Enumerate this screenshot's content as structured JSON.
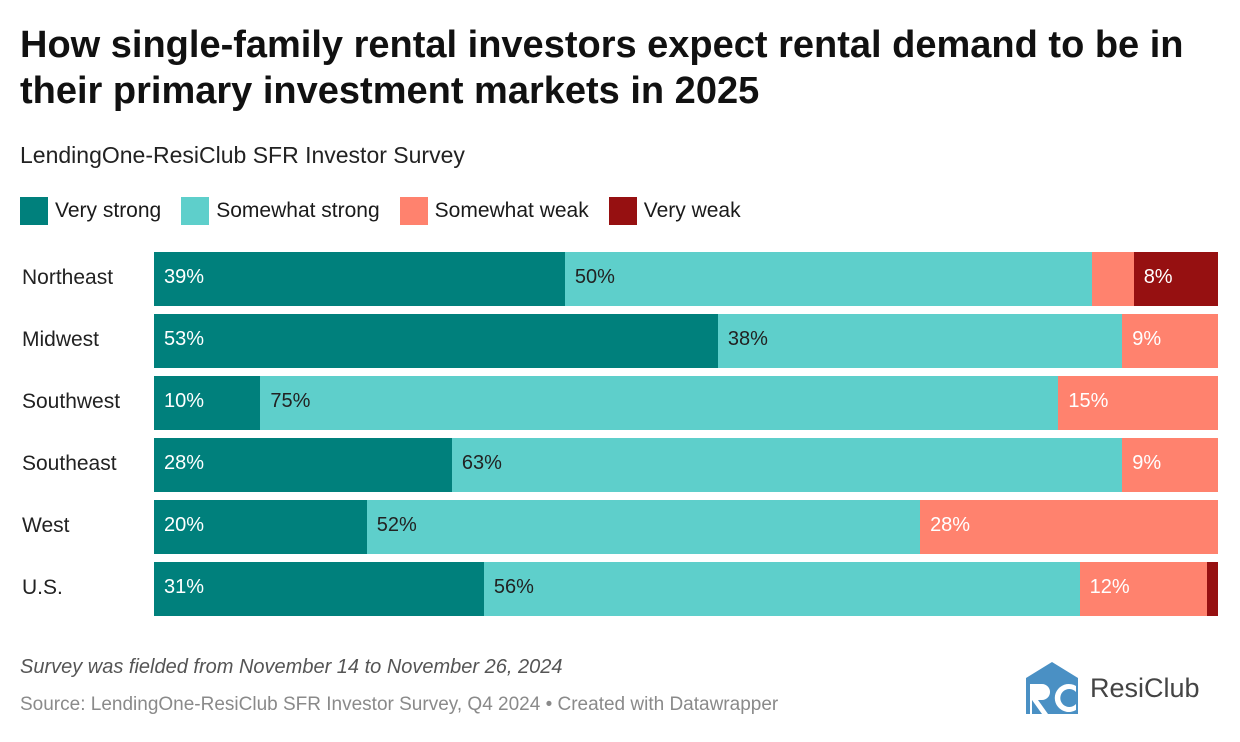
{
  "title": "How single-family rental investors expect rental demand to be in their primary investment markets in 2025",
  "subtitle": "LendingOne-ResiClub SFR Investor Survey",
  "note": "Survey was fielded from November 14 to November 26, 2024",
  "source": "Source: LendingOne-ResiClub SFR Investor Survey, Q4 2024 • Created with Datawrapper",
  "logo_text": "ResiClub",
  "colors": {
    "very_strong": "#00807c",
    "somewhat_strong": "#5ecfcb",
    "somewhat_weak": "#ff826e",
    "very_weak": "#961011",
    "logo": "#4a90c4"
  },
  "chart_data": {
    "type": "bar",
    "stacked": true,
    "orientation": "horizontal",
    "title": "How single-family rental investors expect rental demand to be in their primary investment markets in 2025",
    "legend_position": "top-left",
    "unit": "%",
    "categories": [
      "Northeast",
      "Midwest",
      "Southwest",
      "Southeast",
      "West",
      "U.S."
    ],
    "series": [
      {
        "name": "Very strong",
        "color": "#00807c",
        "label_color": "#fff",
        "values": [
          39,
          53,
          10,
          28,
          20,
          31
        ]
      },
      {
        "name": "Somewhat strong",
        "color": "#5ecfcb",
        "label_color": "#222",
        "values": [
          50,
          38,
          75,
          63,
          52,
          56
        ]
      },
      {
        "name": "Somewhat weak",
        "color": "#ff826e",
        "label_color": "#fff",
        "values": [
          4,
          9,
          15,
          9,
          28,
          12
        ]
      },
      {
        "name": "Very weak",
        "color": "#961011",
        "label_color": "#fff",
        "values": [
          8,
          0,
          0,
          0,
          0,
          1
        ]
      }
    ],
    "label_min": 5
  }
}
